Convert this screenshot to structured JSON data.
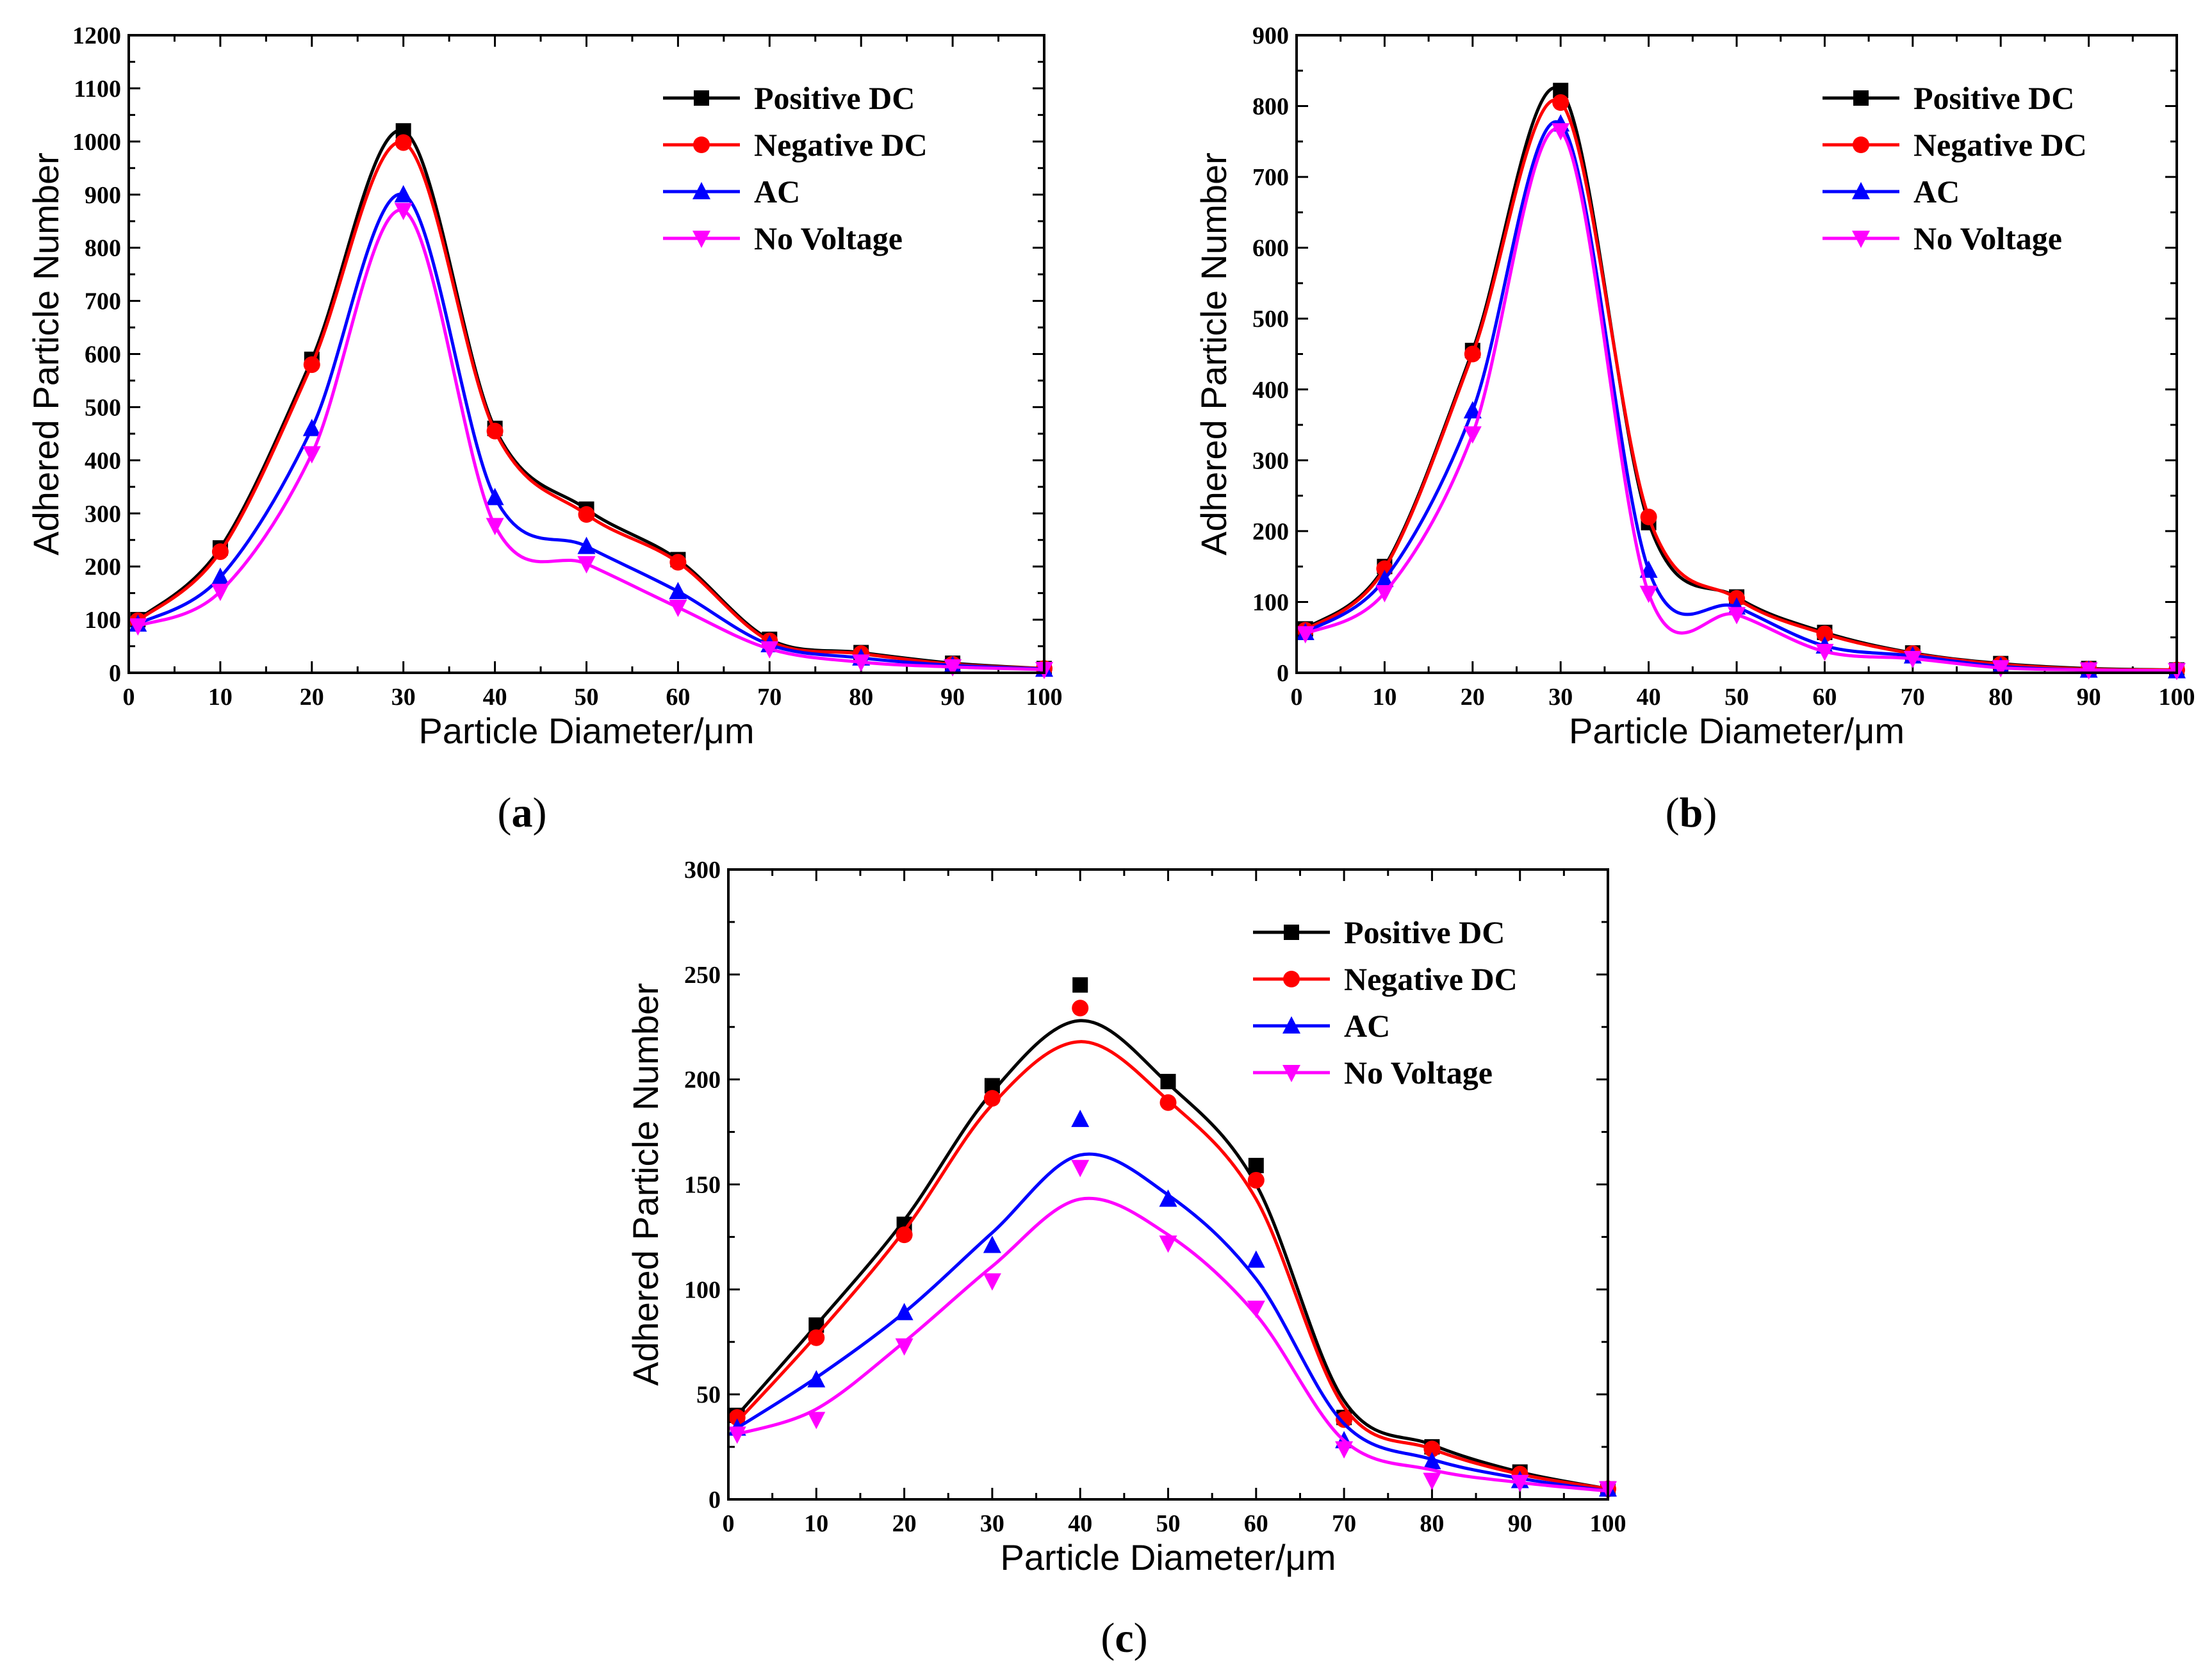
{
  "chart_data": [
    {
      "type": "line",
      "panel_label": "(a)",
      "panel_label_open": "(",
      "panel_label_letter": "a",
      "panel_label_close": ")",
      "xlabel": "Particle Diameter/μm",
      "ylabel": "Adhered Particle Number",
      "xlim": [
        0,
        100
      ],
      "ylim": [
        0,
        1200
      ],
      "xticks": [
        0,
        10,
        20,
        30,
        40,
        50,
        60,
        70,
        80,
        90,
        100
      ],
      "yticks": [
        0,
        100,
        200,
        300,
        400,
        500,
        600,
        700,
        800,
        900,
        1000,
        1100,
        1200
      ],
      "x": [
        1,
        10,
        20,
        30,
        40,
        50,
        60,
        70,
        80,
        90,
        100
      ],
      "legend_position": "top-right",
      "series": [
        {
          "name": "Positive DC",
          "color": "#000000",
          "marker": "square",
          "values": [
            100,
            235,
            590,
            1020,
            460,
            308,
            213,
            63,
            38,
            18,
            8
          ],
          "fit": [
            100,
            235,
            590,
            1020,
            460,
            308,
            213,
            63,
            38,
            18,
            8
          ]
        },
        {
          "name": "Negative DC",
          "color": "#ff0000",
          "marker": "circle",
          "values": [
            98,
            228,
            580,
            998,
            455,
            298,
            208,
            60,
            36,
            16,
            8
          ],
          "fit": [
            98,
            228,
            580,
            998,
            455,
            298,
            208,
            60,
            36,
            16,
            8
          ]
        },
        {
          "name": "AC",
          "color": "#0000ff",
          "marker": "triangle-up",
          "values": [
            92,
            180,
            460,
            900,
            330,
            238,
            153,
            53,
            28,
            14,
            7
          ],
          "fit": [
            92,
            180,
            460,
            900,
            330,
            238,
            153,
            53,
            28,
            14,
            7
          ]
        },
        {
          "name": "No Voltage",
          "color": "#ff00ff",
          "marker": "triangle-down",
          "values": [
            88,
            153,
            412,
            870,
            277,
            205,
            123,
            45,
            20,
            11,
            6
          ],
          "fit": [
            88,
            153,
            412,
            870,
            277,
            205,
            123,
            45,
            20,
            11,
            6
          ]
        }
      ]
    },
    {
      "type": "line",
      "panel_label": "(b)",
      "panel_label_open": "(",
      "panel_label_letter": "b",
      "panel_label_close": ")",
      "xlabel": "Particle Diameter/μm",
      "ylabel": "Adhered Particle Number",
      "xlim": [
        0,
        100
      ],
      "ylim": [
        0,
        900
      ],
      "xticks": [
        0,
        10,
        20,
        30,
        40,
        50,
        60,
        70,
        80,
        90,
        100
      ],
      "yticks": [
        0,
        100,
        200,
        300,
        400,
        500,
        600,
        700,
        800,
        900
      ],
      "x": [
        1,
        10,
        20,
        30,
        40,
        50,
        60,
        70,
        80,
        90,
        100
      ],
      "legend_position": "top-right",
      "series": [
        {
          "name": "Positive DC",
          "color": "#000000",
          "marker": "square",
          "values": [
            62,
            150,
            455,
            822,
            212,
            107,
            57,
            28,
            13,
            6,
            4
          ],
          "fit": [
            62,
            150,
            455,
            822,
            212,
            107,
            57,
            28,
            13,
            6,
            4
          ]
        },
        {
          "name": "Negative DC",
          "color": "#ff0000",
          "marker": "circle",
          "values": [
            60,
            147,
            450,
            805,
            220,
            105,
            55,
            27,
            12,
            5,
            4
          ],
          "fit": [
            60,
            147,
            450,
            805,
            220,
            105,
            55,
            27,
            12,
            5,
            4
          ]
        },
        {
          "name": "AC",
          "color": "#0000ff",
          "marker": "triangle-up",
          "values": [
            57,
            132,
            370,
            775,
            145,
            93,
            38,
            24,
            9,
            4,
            3
          ],
          "fit": [
            57,
            132,
            370,
            775,
            145,
            93,
            38,
            24,
            9,
            4,
            3
          ]
        },
        {
          "name": "No Voltage",
          "color": "#ff00ff",
          "marker": "triangle-down",
          "values": [
            55,
            113,
            337,
            765,
            112,
            82,
            30,
            20,
            7,
            4,
            3
          ],
          "fit": [
            55,
            113,
            337,
            765,
            112,
            82,
            30,
            20,
            7,
            4,
            3
          ]
        }
      ]
    },
    {
      "type": "line",
      "panel_label": "(c)",
      "panel_label_open": "(",
      "panel_label_letter": "c",
      "panel_label_close": ")",
      "xlabel": "Particle Diameter/μm",
      "ylabel": "Adhered Particle Number",
      "xlim": [
        0,
        100
      ],
      "ylim": [
        0,
        300
      ],
      "xticks": [
        0,
        10,
        20,
        30,
        40,
        50,
        60,
        70,
        80,
        90,
        100
      ],
      "yticks": [
        0,
        50,
        100,
        150,
        200,
        250,
        300
      ],
      "x": [
        1,
        10,
        20,
        30,
        40,
        50,
        60,
        70,
        80,
        90,
        100
      ],
      "legend_position": "top-right",
      "series": [
        {
          "name": "Positive DC",
          "color": "#000000",
          "marker": "square",
          "values": [
            40,
            83,
            131,
            197,
            245,
            199,
            159,
            39,
            25,
            13,
            5
          ],
          "fit": [
            40,
            83,
            133,
            194,
            228,
            198,
            150,
            47,
            26,
            13,
            5
          ]
        },
        {
          "name": "Negative DC",
          "color": "#ff0000",
          "marker": "circle",
          "values": [
            39,
            77,
            126,
            191,
            234,
            189,
            152,
            38,
            24,
            12,
            5
          ],
          "fit": [
            37,
            78,
            128,
            188,
            218,
            190,
            143,
            44,
            24,
            12,
            5
          ]
        },
        {
          "name": "AC",
          "color": "#0000ff",
          "marker": "triangle-up",
          "values": [
            34,
            57,
            89,
            121,
            181,
            143,
            114,
            28,
            18,
            9,
            5
          ],
          "fit": [
            34,
            58,
            89,
            127,
            164,
            145,
            105,
            36,
            19,
            10,
            4
          ]
        },
        {
          "name": "No Voltage",
          "color": "#ff00ff",
          "marker": "triangle-down",
          "values": [
            31,
            38,
            73,
            104,
            158,
            122,
            91,
            24,
            9,
            8,
            5
          ],
          "fit": [
            31,
            43,
            75,
            111,
            143,
            126,
            88,
            28,
            14,
            8,
            4
          ]
        }
      ]
    }
  ]
}
